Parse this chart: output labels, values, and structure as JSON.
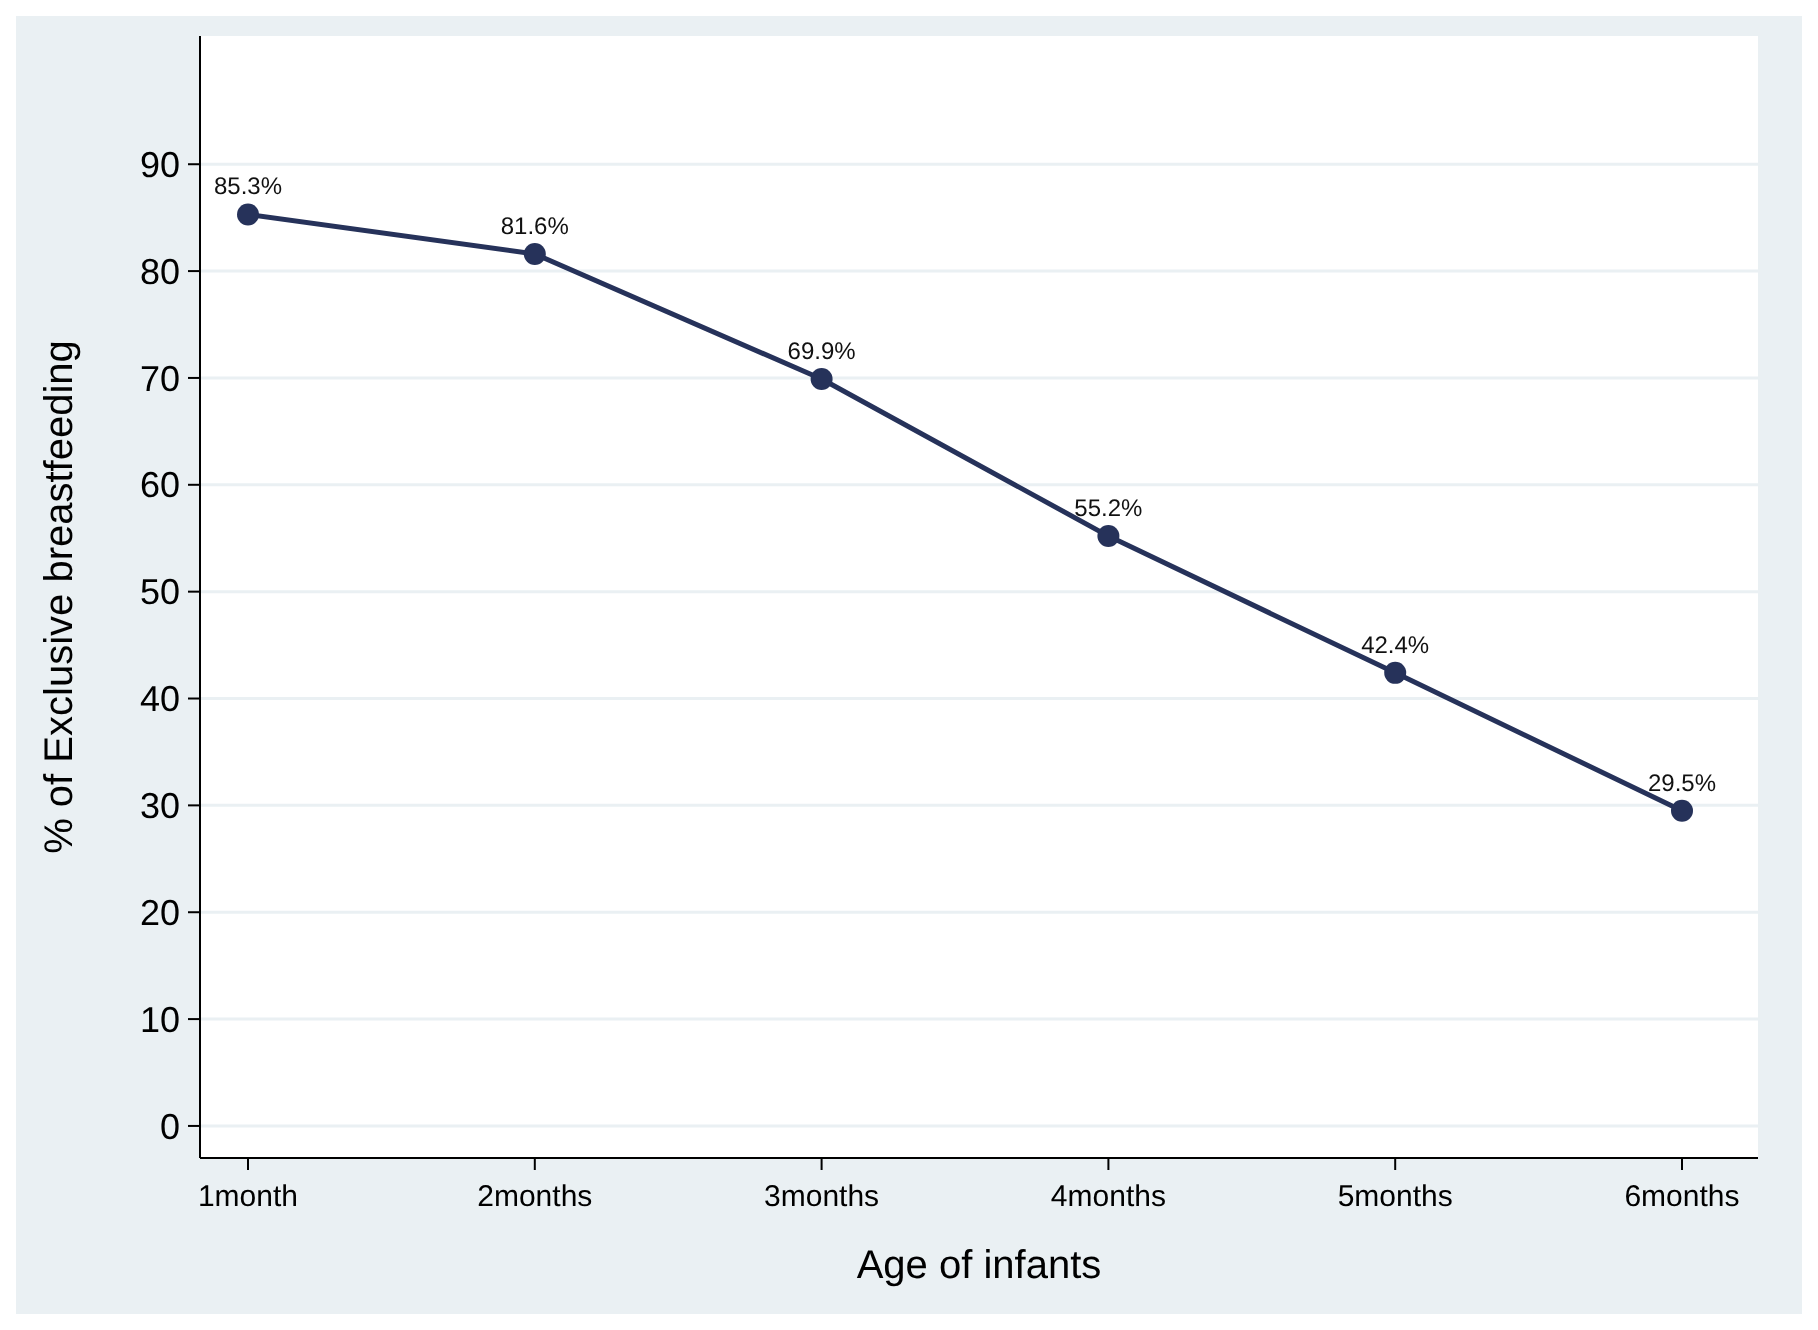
{
  "chart_data": {
    "type": "line",
    "xlabel": "Age of infants",
    "ylabel": "% of Exclusive breastfeeding",
    "categories": [
      "1month",
      "2months",
      "3months",
      "4months",
      "5months",
      "6months"
    ],
    "series": [
      {
        "color": "#26325a",
        "values": [
          85.3,
          81.6,
          69.9,
          55.2,
          42.4,
          29.5
        ],
        "value_labels": [
          "85.3%",
          "81.6%",
          "69.9%",
          "55.2%",
          "42.4%",
          "29.5%"
        ]
      }
    ],
    "ylim": [
      -3,
      102
    ],
    "yticks": [
      0,
      10,
      20,
      30,
      40,
      50,
      60,
      70,
      80,
      90
    ],
    "grid": "y",
    "marker": "circle",
    "line_style": "solid"
  }
}
